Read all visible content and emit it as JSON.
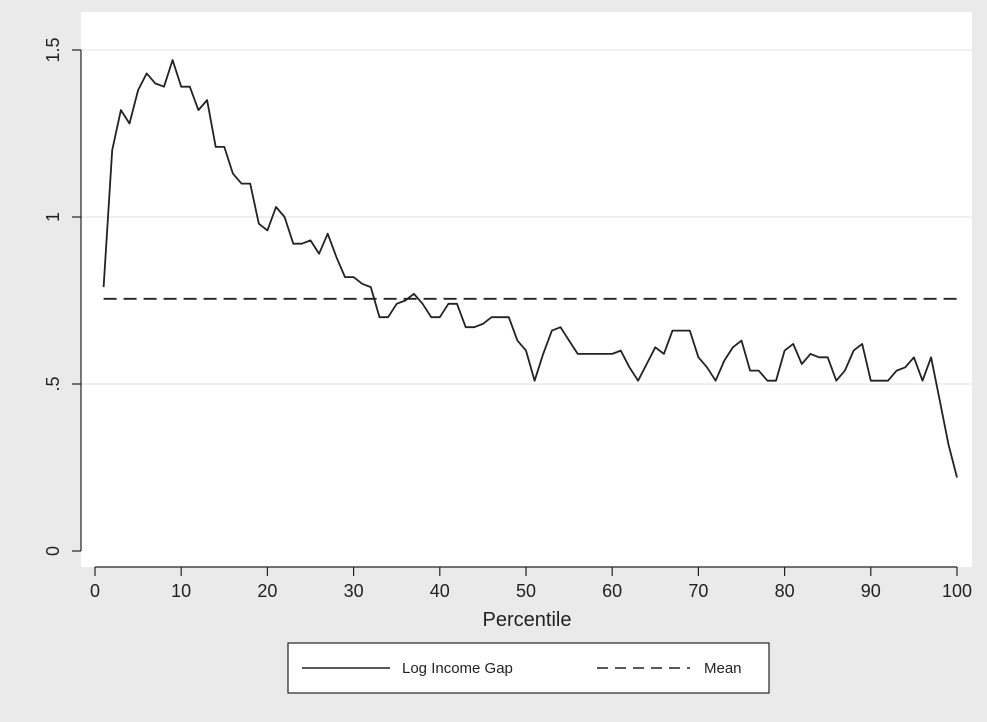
{
  "chart_data": {
    "type": "line",
    "title": "",
    "xlabel": "Percentile",
    "ylabel": "",
    "xlim": [
      0,
      100
    ],
    "ylim": [
      0,
      1.5
    ],
    "x_ticks": [
      0,
      10,
      20,
      30,
      40,
      50,
      60,
      70,
      80,
      90,
      100
    ],
    "x_tick_labels": [
      "0",
      "10",
      "20",
      "30",
      "40",
      "50",
      "60",
      "70",
      "80",
      "90",
      "100"
    ],
    "y_ticks": [
      0,
      0.5,
      1,
      1.5
    ],
    "y_tick_labels": [
      "0",
      ".5",
      "1",
      "1.5"
    ],
    "grid": "horizontal",
    "legend_position": "bottom",
    "series": [
      {
        "name": "Log Income Gap",
        "style": "solid",
        "color": "#222222",
        "x": [
          1,
          2,
          3,
          4,
          5,
          6,
          7,
          8,
          9,
          10,
          11,
          12,
          13,
          14,
          15,
          16,
          17,
          18,
          19,
          20,
          21,
          22,
          23,
          24,
          25,
          26,
          27,
          28,
          29,
          30,
          31,
          32,
          33,
          34,
          35,
          36,
          37,
          38,
          39,
          40,
          41,
          42,
          43,
          44,
          45,
          46,
          47,
          48,
          49,
          50,
          51,
          52,
          53,
          54,
          55,
          56,
          57,
          58,
          59,
          60,
          61,
          62,
          63,
          64,
          65,
          66,
          67,
          68,
          69,
          70,
          71,
          72,
          73,
          74,
          75,
          76,
          77,
          78,
          79,
          80,
          81,
          82,
          83,
          84,
          85,
          86,
          87,
          88,
          89,
          90,
          91,
          92,
          93,
          94,
          95,
          96,
          97,
          98,
          99,
          100
        ],
        "values": [
          0.79,
          1.2,
          1.32,
          1.28,
          1.38,
          1.43,
          1.4,
          1.39,
          1.47,
          1.39,
          1.39,
          1.32,
          1.35,
          1.21,
          1.21,
          1.13,
          1.1,
          1.1,
          0.98,
          0.96,
          1.03,
          1.0,
          0.92,
          0.92,
          0.93,
          0.89,
          0.95,
          0.88,
          0.82,
          0.82,
          0.8,
          0.79,
          0.7,
          0.7,
          0.74,
          0.75,
          0.77,
          0.74,
          0.7,
          0.7,
          0.74,
          0.74,
          0.67,
          0.67,
          0.68,
          0.7,
          0.7,
          0.7,
          0.63,
          0.6,
          0.51,
          0.59,
          0.66,
          0.67,
          0.63,
          0.59,
          0.59,
          0.59,
          0.59,
          0.59,
          0.6,
          0.55,
          0.51,
          0.56,
          0.61,
          0.59,
          0.66,
          0.66,
          0.66,
          0.58,
          0.55,
          0.51,
          0.57,
          0.61,
          0.63,
          0.54,
          0.54,
          0.51,
          0.51,
          0.6,
          0.62,
          0.56,
          0.59,
          0.58,
          0.58,
          0.51,
          0.54,
          0.6,
          0.62,
          0.51,
          0.51,
          0.51,
          0.54,
          0.55,
          0.58,
          0.51,
          0.58,
          0.45,
          0.32,
          0.22
        ]
      },
      {
        "name": "Mean",
        "style": "dashed",
        "color": "#222222",
        "x": [
          1,
          100
        ],
        "values": [
          0.755,
          0.755
        ]
      }
    ]
  }
}
